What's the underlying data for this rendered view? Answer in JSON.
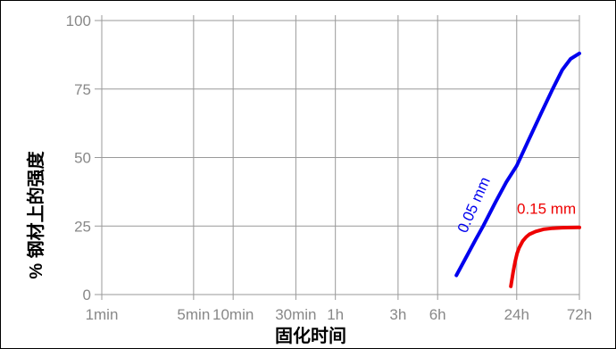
{
  "chart_data": {
    "type": "line",
    "xlabel": "固化时间",
    "ylabel": "% 钢材上的强度",
    "x_scale": "log",
    "x_tick_labels": [
      "1min",
      "5min",
      "10min",
      "30min",
      "1h",
      "3h",
      "6h",
      "24h",
      "72h"
    ],
    "x_tick_minutes": [
      1,
      5,
      10,
      30,
      60,
      180,
      360,
      1440,
      4320
    ],
    "yticks": [
      0,
      25,
      50,
      75,
      100
    ],
    "ylim": [
      0,
      100
    ],
    "grid": true,
    "series": [
      {
        "name": "0.05 mm",
        "color": "#0000ee",
        "x_minutes": [
          500,
          600,
          700,
          800,
          1000,
          1200,
          1440,
          1800,
          2200,
          2700,
          3200,
          3700,
          4320
        ],
        "y": [
          7,
          14,
          20,
          25,
          34,
          41,
          47,
          57,
          66,
          75,
          82,
          86,
          88
        ]
      },
      {
        "name": "0.15 mm",
        "color": "#ee0000",
        "x_minutes": [
          1300,
          1350,
          1400,
          1450,
          1500,
          1600,
          1700,
          1800,
          2000,
          2300,
          2700,
          3200,
          4320
        ],
        "y": [
          3,
          8,
          12,
          15,
          17,
          19.5,
          21,
          22,
          23,
          23.8,
          24.2,
          24.4,
          24.5
        ]
      }
    ]
  }
}
